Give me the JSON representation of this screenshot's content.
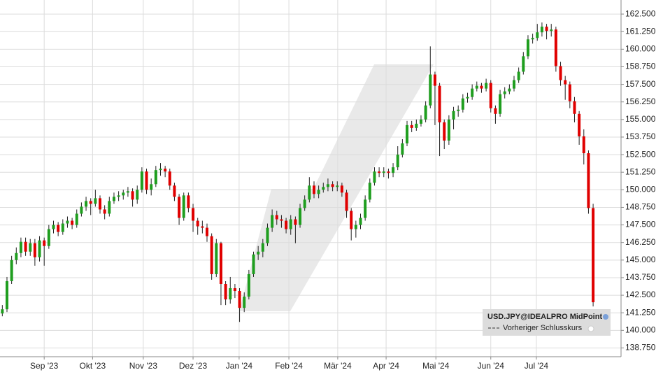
{
  "chart_data": {
    "type": "candlestick",
    "open": [
      141.2,
      141.5,
      143.5,
      145.0,
      145.5,
      146.3,
      145.6,
      146.2,
      145.2,
      146.4,
      146.0,
      147.2,
      147.5,
      147.0,
      147.6,
      147.8,
      147.5,
      148.3,
      148.8,
      149.2,
      149.0,
      149.4,
      148.6,
      148.3,
      149.2,
      149.5,
      149.6,
      149.8,
      149.9,
      149.3,
      150.0,
      151.3,
      150.0,
      150.4,
      151.4,
      151.5,
      151.3,
      150.3,
      149.5,
      148.0,
      149.6,
      148.7,
      147.8,
      147.4,
      147.3,
      146.7,
      144.0,
      146.2,
      143.3,
      142.2,
      143.0,
      142.8,
      141.6,
      142.4,
      144.0,
      145.4,
      145.6,
      146.2,
      147.3,
      148.2,
      147.9,
      147.8,
      147.2,
      147.9,
      147.5,
      148.7,
      149.3,
      150.3,
      149.7,
      150.0,
      150.2,
      150.4,
      150.2,
      150.3,
      149.8,
      148.5,
      147.2,
      147.5,
      148.0,
      149.3,
      150.5,
      151.3,
      151.2,
      151.3,
      151.2,
      151.6,
      152.5,
      153.3,
      154.6,
      154.4,
      154.7,
      155.0,
      156.0,
      158.2,
      157.4,
      154.8,
      153.5,
      155.0,
      155.6,
      155.7,
      156.5,
      156.6,
      157.2,
      157.4,
      157.2,
      157.6,
      155.8,
      155.4,
      156.8,
      157.0,
      157.2,
      157.8,
      158.4,
      159.5,
      160.7,
      160.8,
      161.2,
      161.6,
      161.3,
      161.4,
      158.8,
      157.8,
      157.5,
      156.3,
      155.4,
      153.8,
      152.6,
      148.7
    ],
    "high": [
      141.8,
      143.8,
      145.3,
      145.9,
      146.6,
      146.6,
      146.5,
      146.5,
      146.7,
      146.6,
      147.5,
      147.8,
      147.7,
      147.9,
      148.1,
      148.0,
      148.6,
      149.1,
      149.5,
      149.4,
      150.0,
      149.6,
      148.9,
      149.5,
      149.8,
      149.9,
      150.0,
      150.2,
      150.1,
      150.3,
      151.6,
      151.5,
      150.8,
      151.7,
      151.9,
      151.7,
      151.5,
      150.5,
      149.7,
      149.8,
      149.8,
      149.0,
      148.0,
      147.8,
      147.6,
      146.9,
      146.5,
      146.3,
      143.5,
      143.8,
      143.3,
      143.0,
      142.7,
      144.3,
      145.6,
      146.0,
      146.5,
      147.6,
      148.6,
      148.5,
      148.2,
      148.0,
      148.2,
      148.1,
      149.0,
      149.6,
      150.9,
      150.6,
      150.3,
      150.5,
      150.8,
      150.6,
      150.6,
      150.5,
      150.0,
      148.7,
      147.8,
      148.3,
      149.6,
      150.8,
      151.6,
      151.6,
      151.6,
      151.5,
      151.9,
      153.1,
      153.6,
      154.9,
      154.9,
      155.0,
      155.3,
      156.3,
      160.2,
      158.4,
      157.6,
      155.0,
      155.3,
      155.9,
      156.0,
      156.8,
      156.9,
      157.5,
      157.7,
      157.6,
      157.9,
      157.8,
      156.0,
      157.1,
      157.3,
      157.5,
      158.1,
      158.7,
      159.8,
      161.0,
      161.1,
      161.8,
      161.9,
      161.8,
      161.8,
      161.6,
      159.1,
      158.1,
      157.7,
      156.6,
      155.6,
      154.3,
      152.8,
      149.0
    ],
    "low": [
      141.0,
      141.3,
      143.3,
      144.7,
      145.2,
      145.3,
      145.3,
      144.6,
      144.9,
      144.6,
      145.8,
      146.9,
      146.7,
      146.8,
      147.3,
      147.2,
      147.3,
      148.1,
      148.5,
      148.2,
      148.8,
      148.3,
      147.9,
      148.1,
      149.0,
      149.2,
      149.3,
      149.5,
      148.8,
      149.0,
      149.8,
      149.7,
      149.6,
      150.2,
      151.0,
      150.9,
      150.0,
      149.2,
      147.5,
      147.8,
      148.4,
      147.0,
      146.8,
      146.9,
      146.3,
      143.6,
      143.8,
      141.8,
      141.8,
      141.9,
      142.3,
      140.6,
      141.3,
      142.2,
      143.8,
      145.0,
      145.2,
      146.0,
      147.0,
      147.5,
      147.3,
      146.9,
      146.8,
      146.2,
      147.3,
      148.5,
      149.1,
      149.4,
      149.4,
      149.8,
      149.9,
      149.9,
      149.9,
      149.5,
      148.0,
      146.4,
      146.6,
      147.2,
      147.8,
      149.1,
      150.3,
      150.9,
      150.9,
      150.8,
      150.9,
      151.4,
      152.3,
      153.1,
      154.1,
      154.2,
      154.5,
      154.8,
      155.8,
      154.6,
      152.4,
      152.9,
      153.2,
      154.3,
      155.2,
      155.5,
      156.2,
      156.4,
      157.0,
      156.9,
      157.0,
      155.5,
      154.7,
      155.2,
      156.5,
      156.8,
      157.0,
      157.6,
      158.2,
      159.3,
      160.4,
      160.6,
      160.9,
      160.7,
      160.9,
      158.4,
      157.4,
      156.4,
      155.8,
      154.8,
      153.2,
      151.8,
      148.3,
      141.7
    ],
    "close": [
      141.5,
      143.5,
      145.0,
      145.5,
      146.3,
      145.6,
      146.2,
      145.2,
      146.4,
      146.0,
      147.2,
      147.5,
      147.0,
      147.6,
      147.8,
      147.5,
      148.3,
      148.8,
      149.2,
      149.0,
      149.4,
      148.6,
      148.3,
      149.2,
      149.5,
      149.6,
      149.8,
      149.9,
      149.3,
      150.0,
      151.3,
      150.0,
      150.4,
      151.4,
      151.5,
      151.3,
      150.3,
      149.5,
      148.0,
      149.6,
      148.7,
      147.8,
      147.4,
      147.3,
      146.7,
      144.0,
      146.2,
      143.3,
      142.2,
      143.0,
      142.8,
      141.6,
      142.4,
      144.0,
      145.4,
      145.6,
      146.2,
      147.3,
      148.2,
      147.9,
      147.8,
      147.2,
      147.9,
      147.5,
      148.7,
      149.3,
      150.3,
      149.7,
      150.0,
      150.2,
      150.4,
      150.2,
      150.3,
      149.8,
      148.5,
      147.2,
      147.5,
      148.0,
      149.3,
      150.5,
      151.3,
      151.2,
      151.3,
      151.2,
      151.6,
      152.5,
      153.3,
      154.6,
      154.4,
      154.7,
      155.0,
      156.0,
      158.2,
      157.4,
      154.8,
      153.5,
      155.0,
      155.6,
      155.7,
      156.5,
      156.6,
      157.2,
      157.4,
      157.2,
      157.6,
      155.8,
      155.4,
      156.8,
      157.0,
      157.2,
      157.8,
      158.4,
      159.5,
      160.7,
      160.8,
      161.2,
      161.6,
      161.3,
      161.4,
      158.8,
      157.8,
      157.5,
      156.3,
      155.4,
      153.8,
      152.6,
      148.7,
      142.0
    ],
    "up_color": "#1f9e1f",
    "down_color": "#e00000",
    "ylim": [
      138.125,
      163.5
    ],
    "yticks": [
      {
        "value": 138.75,
        "label": "138.750"
      },
      {
        "value": 140,
        "label": "140.000"
      },
      {
        "value": 141.25,
        "label": "141.250"
      },
      {
        "value": 142.5,
        "label": "142.500"
      },
      {
        "value": 143.75,
        "label": "143.750"
      },
      {
        "value": 145,
        "label": "145.000"
      },
      {
        "value": 146.25,
        "label": "146.250"
      },
      {
        "value": 147.5,
        "label": "147.500"
      },
      {
        "value": 148.75,
        "label": "148.750"
      },
      {
        "value": 150,
        "label": "150.000"
      },
      {
        "value": 151.25,
        "label": "151.250"
      },
      {
        "value": 152.5,
        "label": "152.500"
      },
      {
        "value": 153.75,
        "label": "153.750"
      },
      {
        "value": 155,
        "label": "155.000"
      },
      {
        "value": 156.25,
        "label": "156.250"
      },
      {
        "value": 157.5,
        "label": "157.500"
      },
      {
        "value": 158.75,
        "label": "158.750"
      },
      {
        "value": 160,
        "label": "160.000"
      },
      {
        "value": 161.25,
        "label": "161.250"
      },
      {
        "value": 162.5,
        "label": "162.500"
      }
    ],
    "xlim": [
      -0.5,
      133
    ],
    "xticks": [
      {
        "value": 9,
        "label": "Sep '23"
      },
      {
        "value": 19.4,
        "label": "Okt '23"
      },
      {
        "value": 30.3,
        "label": "Nov '23"
      },
      {
        "value": 41,
        "label": "Dez '23"
      },
      {
        "value": 50.9,
        "label": "Jan '24"
      },
      {
        "value": 61.6,
        "label": "Feb '24"
      },
      {
        "value": 72.1,
        "label": "Mär '24"
      },
      {
        "value": 82.5,
        "label": "Apr '24"
      },
      {
        "value": 93.2,
        "label": "Mai '24"
      },
      {
        "value": 105,
        "label": "Jun '24"
      },
      {
        "value": 114.8,
        "label": "Jul '24"
      }
    ],
    "grid": true,
    "legend": {
      "series_name": "USD.JPY@IDEALPRO MidPoint",
      "reference_line": "Vorheriger Schlusskurs"
    }
  }
}
